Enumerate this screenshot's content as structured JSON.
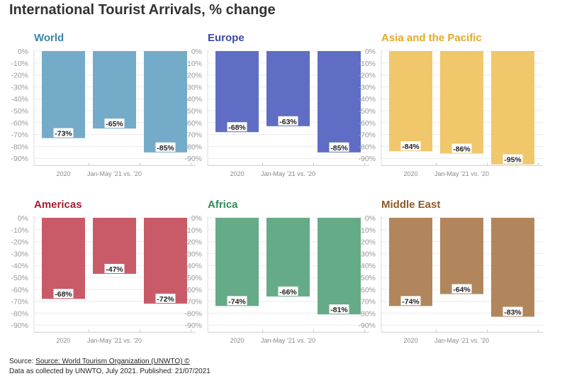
{
  "page": {
    "title": "International Tourist Arrivals, % change",
    "source_prefix": "Source:",
    "source_link": "Source: World Tourism Organization (UNWTO) ©",
    "source_line2": "Data as collected by UNWTO, July 2021. Published: 21/07/2021"
  },
  "chart_data": [
    {
      "type": "bar",
      "title": "World",
      "color": "#74abc9",
      "title_color": "#3a87a8",
      "categories": [
        "2020",
        "Jan-May '21 vs. '20",
        ""
      ],
      "values": [
        -73,
        -65,
        -85
      ],
      "ylim": [
        -90,
        0
      ],
      "yticks": [
        "0%",
        "-10%",
        "-20%",
        "-30%",
        "-40%",
        "-50%",
        "-60%",
        "-70%",
        "-80%",
        "-90%"
      ],
      "data_labels": [
        "-73%",
        "-65%",
        "-85%"
      ]
    },
    {
      "type": "bar",
      "title": "Europe",
      "color": "#5f6dc4",
      "title_color": "#3d4aa3",
      "categories": [
        "2020",
        "Jan-May '21 vs. '20",
        ""
      ],
      "values": [
        -68,
        -63,
        -85
      ],
      "ylim": [
        -90,
        0
      ],
      "yticks": [
        "0%",
        "-10%",
        "-20%",
        "-30%",
        "-40%",
        "-50%",
        "-60%",
        "-70%",
        "-80%",
        "-90%"
      ],
      "data_labels": [
        "-68%",
        "-63%",
        "-85%"
      ]
    },
    {
      "type": "bar",
      "title": "Asia and the Pacific",
      "color": "#f1c76b",
      "title_color": "#e1aa2a",
      "categories": [
        "2020",
        "Jan-May '21 vs. '20",
        ""
      ],
      "values": [
        -84,
        -86,
        -95
      ],
      "ylim": [
        -90,
        0
      ],
      "yticks": [
        "0%",
        "-10%",
        "-20%",
        "-30%",
        "-40%",
        "-50%",
        "-60%",
        "-70%",
        "-80%",
        "-90%"
      ],
      "data_labels": [
        "-84%",
        "-86%",
        "-95%"
      ]
    },
    {
      "type": "bar",
      "title": "Americas",
      "color": "#c95b68",
      "title_color": "#a51d33",
      "categories": [
        "2020",
        "Jan-May '21 vs. '20",
        ""
      ],
      "values": [
        -68,
        -47,
        -72
      ],
      "ylim": [
        -90,
        0
      ],
      "yticks": [
        "0%",
        "-10%",
        "-20%",
        "-30%",
        "-40%",
        "-50%",
        "-60%",
        "-70%",
        "-80%",
        "-90%"
      ],
      "data_labels": [
        "-68%",
        "-47%",
        "-72%"
      ]
    },
    {
      "type": "bar",
      "title": "Africa",
      "color": "#66ab87",
      "title_color": "#2e8a5a",
      "categories": [
        "2020",
        "Jan-May '21 vs. '20",
        ""
      ],
      "values": [
        -74,
        -66,
        -81
      ],
      "ylim": [
        -90,
        0
      ],
      "yticks": [
        "0%",
        "-10%",
        "-20%",
        "-30%",
        "-40%",
        "-50%",
        "-60%",
        "-70%",
        "-80%",
        "-90%"
      ],
      "data_labels": [
        "-74%",
        "-66%",
        "-81%"
      ]
    },
    {
      "type": "bar",
      "title": "Middle East",
      "color": "#b2865c",
      "title_color": "#8d5a2a",
      "categories": [
        "2020",
        "Jan-May '21 vs. '20",
        ""
      ],
      "values": [
        -74,
        -64,
        -83
      ],
      "ylim": [
        -90,
        0
      ],
      "yticks": [
        "0%",
        "-10%",
        "-20%",
        "-30%",
        "-40%",
        "-50%",
        "-60%",
        "-70%",
        "-80%",
        "-90%"
      ],
      "data_labels": [
        "-74%",
        "-64%",
        "-83%"
      ]
    }
  ]
}
